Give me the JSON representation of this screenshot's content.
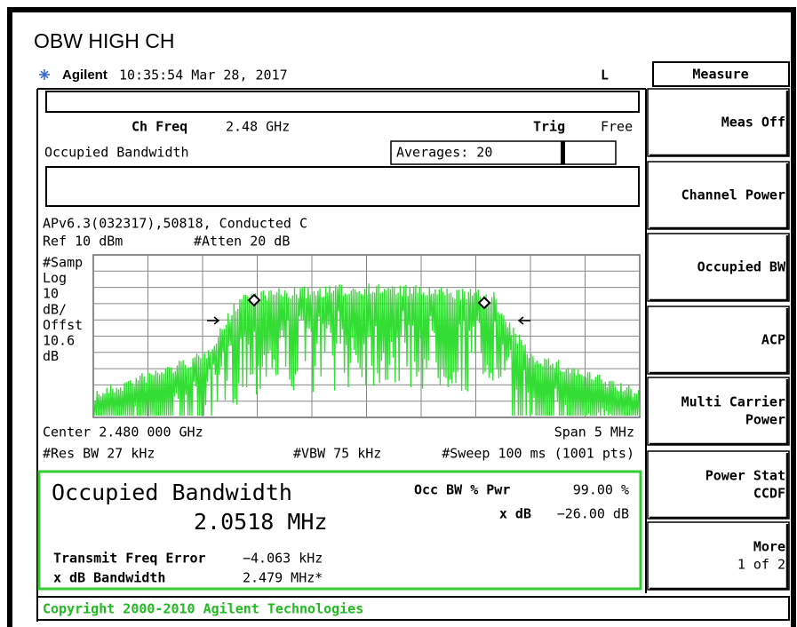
{
  "title": "OBW HIGH CH",
  "header": {
    "brand": "Agilent",
    "timestamp": "10:35:54  Mar 28, 2017",
    "indicator": "L"
  },
  "screen": {
    "ch_freq_label": "Ch Freq",
    "ch_freq_value": "2.48 GHz",
    "trig_label": "Trig",
    "trig_value": "Free",
    "measurement": "Occupied Bandwidth",
    "averages": "Averages: 20",
    "setup": "APv6.3(032317),50818, Conducted C",
    "ref": "Ref 10 dBm",
    "atten": "#Atten 20 dB",
    "scale_labels": [
      "#Samp",
      "Log",
      "10",
      "dB/",
      "Offst",
      "10.6",
      "dB"
    ],
    "center": "Center 2.480 000 GHz",
    "span": "Span 5 MHz",
    "res_bw": "#Res BW 27 kHz",
    "vbw": "#VBW 75 kHz",
    "sweep": "#Sweep 100 ms (1001 pts)"
  },
  "results": {
    "title": "Occupied Bandwidth",
    "obw": "2.0518 MHz",
    "occ_pwr_label": "Occ BW % Pwr",
    "occ_pwr_value": "99.00 %",
    "xdb_label": "x dB",
    "xdb_value": "−26.00 dB",
    "freq_error_label": "Transmit Freq Error",
    "freq_error_value": "−4.063 kHz",
    "xdb_bw_label": "x dB Bandwidth",
    "xdb_bw_value": "2.479 MHz*"
  },
  "footer": "Copyright 2000-2010 Agilent Technologies",
  "menu": {
    "title": "Measure",
    "keys": [
      [
        "Meas Off"
      ],
      [
        "Channel Power"
      ],
      [
        "Occupied BW"
      ],
      [
        "ACP"
      ],
      [
        "Multi Carrier",
        "Power"
      ],
      [
        "Power Stat",
        "CCDF"
      ],
      [
        "More",
        "1 of 2"
      ]
    ]
  }
}
